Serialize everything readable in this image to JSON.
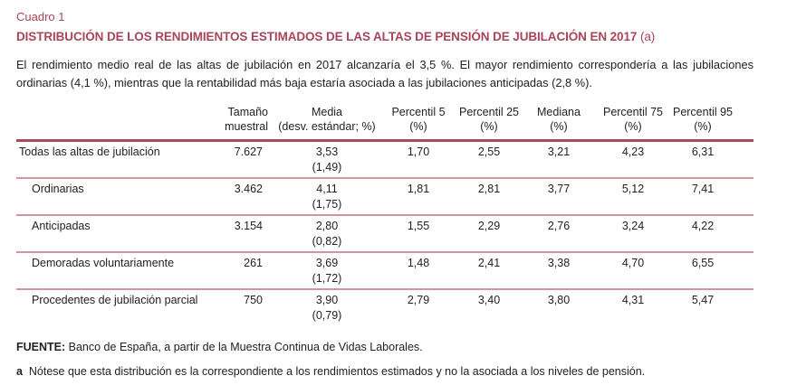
{
  "kicker": "Cuadro 1",
  "title": "DISTRIBUCIÓN DE LOS RENDIMIENTOS ESTIMADOS DE LAS ALTAS DE PENSIÓN DE JUBILACIÓN EN 2017",
  "title_note": " (a)",
  "intro": "El rendimiento medio real de las altas de jubilación en 2017 alcanzaría el 3,5 %. El mayor rendimiento correspondería a las jubilaciones ordinarias (4,1 %), mientras que la rentabilidad más baja estaría asociada a las jubilaciones anticipadas (2,8 %).",
  "table": {
    "headers": [
      {
        "l1": "Tamaño",
        "l2": "muestral"
      },
      {
        "l1": "Media",
        "l2": "(desv. estándar; %)"
      },
      {
        "l1": "Percentil 5",
        "l2": "(%)"
      },
      {
        "l1": "Percentil 25",
        "l2": "(%)"
      },
      {
        "l1": "Mediana",
        "l2": "(%)"
      },
      {
        "l1": "Percentil 75",
        "l2": "(%)"
      },
      {
        "l1": "Percentil 95",
        "l2": "(%)"
      }
    ],
    "rows": [
      {
        "label": "Todas las altas de jubilación",
        "n": "7.627",
        "mean": "3,53",
        "sd": "(1,49)",
        "p5": "1,70",
        "p25": "2,55",
        "median": "3,21",
        "p75": "4,23",
        "p95": "6,31"
      },
      {
        "label": "Ordinarias",
        "n": "3.462",
        "mean": "4,11",
        "sd": "(1,75)",
        "p5": "1,81",
        "p25": "2,81",
        "median": "3,77",
        "p75": "5,12",
        "p95": "7,41"
      },
      {
        "label": "Anticipadas",
        "n": "3.154",
        "mean": "2,80",
        "sd": "(0,82)",
        "p5": "1,55",
        "p25": "2,29",
        "median": "2,76",
        "p75": "3,24",
        "p95": "4,22"
      },
      {
        "label": "Demoradas voluntariamente",
        "n": "261",
        "mean": "3,69",
        "sd": "(1,72)",
        "p5": "1,48",
        "p25": "2,41",
        "median": "3,38",
        "p75": "4,70",
        "p95": "6,55"
      },
      {
        "label": "Procedentes de jubilación parcial",
        "n": "750",
        "mean": "3,90",
        "sd": "(0,79)",
        "p5": "2,79",
        "p25": "3,40",
        "median": "3,80",
        "p75": "4,31",
        "p95": "5,47"
      }
    ]
  },
  "source_label": "FUENTE:",
  "source_text": " Banco de España, a partir de la Muestra Continua de Vidas Laborales.",
  "note_label": "a",
  "note_text": "  Nótese que esta distribución es la correspondiente a los rendimientos estimados y no la asociada a los niveles de pensión.",
  "colors": {
    "accent": "#a8455a",
    "row_rule": "#d1979e"
  }
}
